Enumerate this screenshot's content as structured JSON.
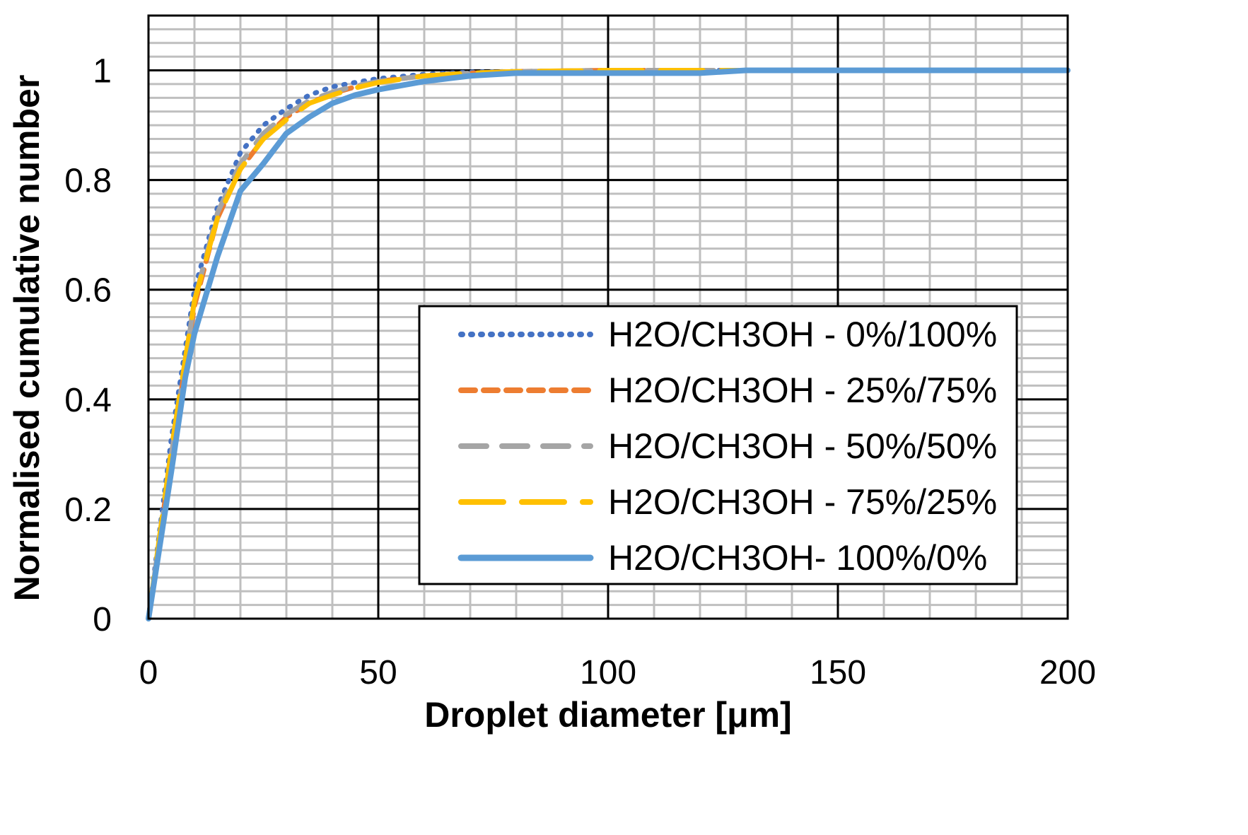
{
  "chart_data": {
    "type": "line",
    "title": "",
    "xlabel": "Droplet diameter [μm]",
    "ylabel": "Normalised cumulative number",
    "xlim": [
      0,
      200
    ],
    "ylim": [
      0,
      1.1
    ],
    "x_ticks": [
      0,
      50,
      100,
      150,
      200
    ],
    "x_tick_labels": [
      "0",
      "50",
      "100",
      "150",
      "200"
    ],
    "y_ticks": [
      0,
      0.2,
      0.4,
      0.6,
      0.8,
      1
    ],
    "y_tick_labels": [
      "0",
      "0.2",
      "0.4",
      "0.6",
      "0.8",
      "1"
    ],
    "grid": "major and minor",
    "legend_position": "bottom-right",
    "series": [
      {
        "name": "H2O/CH3OH - 0%/100%",
        "color": "#4472c4",
        "style": "dotted",
        "x": [
          0,
          5,
          10,
          15,
          20,
          25,
          30,
          35,
          40,
          45,
          50,
          60,
          70,
          80,
          90,
          100,
          110,
          120,
          130,
          150,
          200
        ],
        "y": [
          0,
          0.33,
          0.6,
          0.75,
          0.85,
          0.9,
          0.93,
          0.955,
          0.97,
          0.978,
          0.985,
          0.993,
          0.997,
          0.998,
          0.999,
          1.0,
          1.0,
          1.0,
          1.0,
          1.0,
          1.0
        ]
      },
      {
        "name": "H2O/CH3OH - 25%/75%",
        "color": "#ed7d31",
        "style": "dashed",
        "x": [
          0,
          5,
          10,
          15,
          20,
          25,
          30,
          35,
          40,
          45,
          50,
          60,
          70,
          80,
          90,
          100,
          110,
          120,
          130,
          150,
          200
        ],
        "y": [
          0,
          0.3,
          0.57,
          0.73,
          0.82,
          0.875,
          0.915,
          0.94,
          0.958,
          0.97,
          0.98,
          0.99,
          0.995,
          0.998,
          0.999,
          1.0,
          1.0,
          1.0,
          1.0,
          1.0,
          1.0
        ]
      },
      {
        "name": "H2O/CH3OH - 50%/50%",
        "color": "#a5a5a5",
        "style": "long-dashed",
        "x": [
          0,
          5,
          10,
          15,
          20,
          25,
          30,
          35,
          40,
          45,
          50,
          60,
          70,
          80,
          90,
          100,
          110,
          120,
          130,
          150,
          200
        ],
        "y": [
          0,
          0.3,
          0.58,
          0.74,
          0.83,
          0.885,
          0.92,
          0.945,
          0.96,
          0.972,
          0.98,
          0.99,
          0.995,
          0.998,
          0.999,
          1.0,
          1.0,
          1.0,
          1.0,
          1.0,
          1.0
        ]
      },
      {
        "name": "H2O/CH3OH - 75%/25%",
        "color": "#ffc000",
        "style": "very-long-dashed",
        "x": [
          0,
          5,
          10,
          15,
          20,
          25,
          30,
          35,
          40,
          45,
          50,
          60,
          70,
          80,
          90,
          100,
          110,
          120,
          130,
          150,
          200
        ],
        "y": [
          0,
          0.31,
          0.58,
          0.73,
          0.82,
          0.875,
          0.91,
          0.94,
          0.955,
          0.968,
          0.978,
          0.99,
          0.995,
          0.998,
          0.999,
          1.0,
          1.0,
          1.0,
          1.0,
          1.0,
          1.0
        ]
      },
      {
        "name": "H2O/CH3OH- 100%/0%",
        "color": "#5b9bd5",
        "style": "solid",
        "x": [
          0,
          5,
          8,
          10,
          15,
          20,
          25,
          30,
          35,
          40,
          45,
          50,
          60,
          70,
          80,
          90,
          100,
          110,
          120,
          130,
          150,
          200
        ],
        "y": [
          0,
          0.27,
          0.44,
          0.52,
          0.66,
          0.78,
          0.83,
          0.885,
          0.915,
          0.94,
          0.955,
          0.965,
          0.98,
          0.99,
          0.995,
          0.995,
          0.995,
          0.995,
          0.995,
          1.0,
          1.0,
          1.0
        ]
      }
    ]
  }
}
